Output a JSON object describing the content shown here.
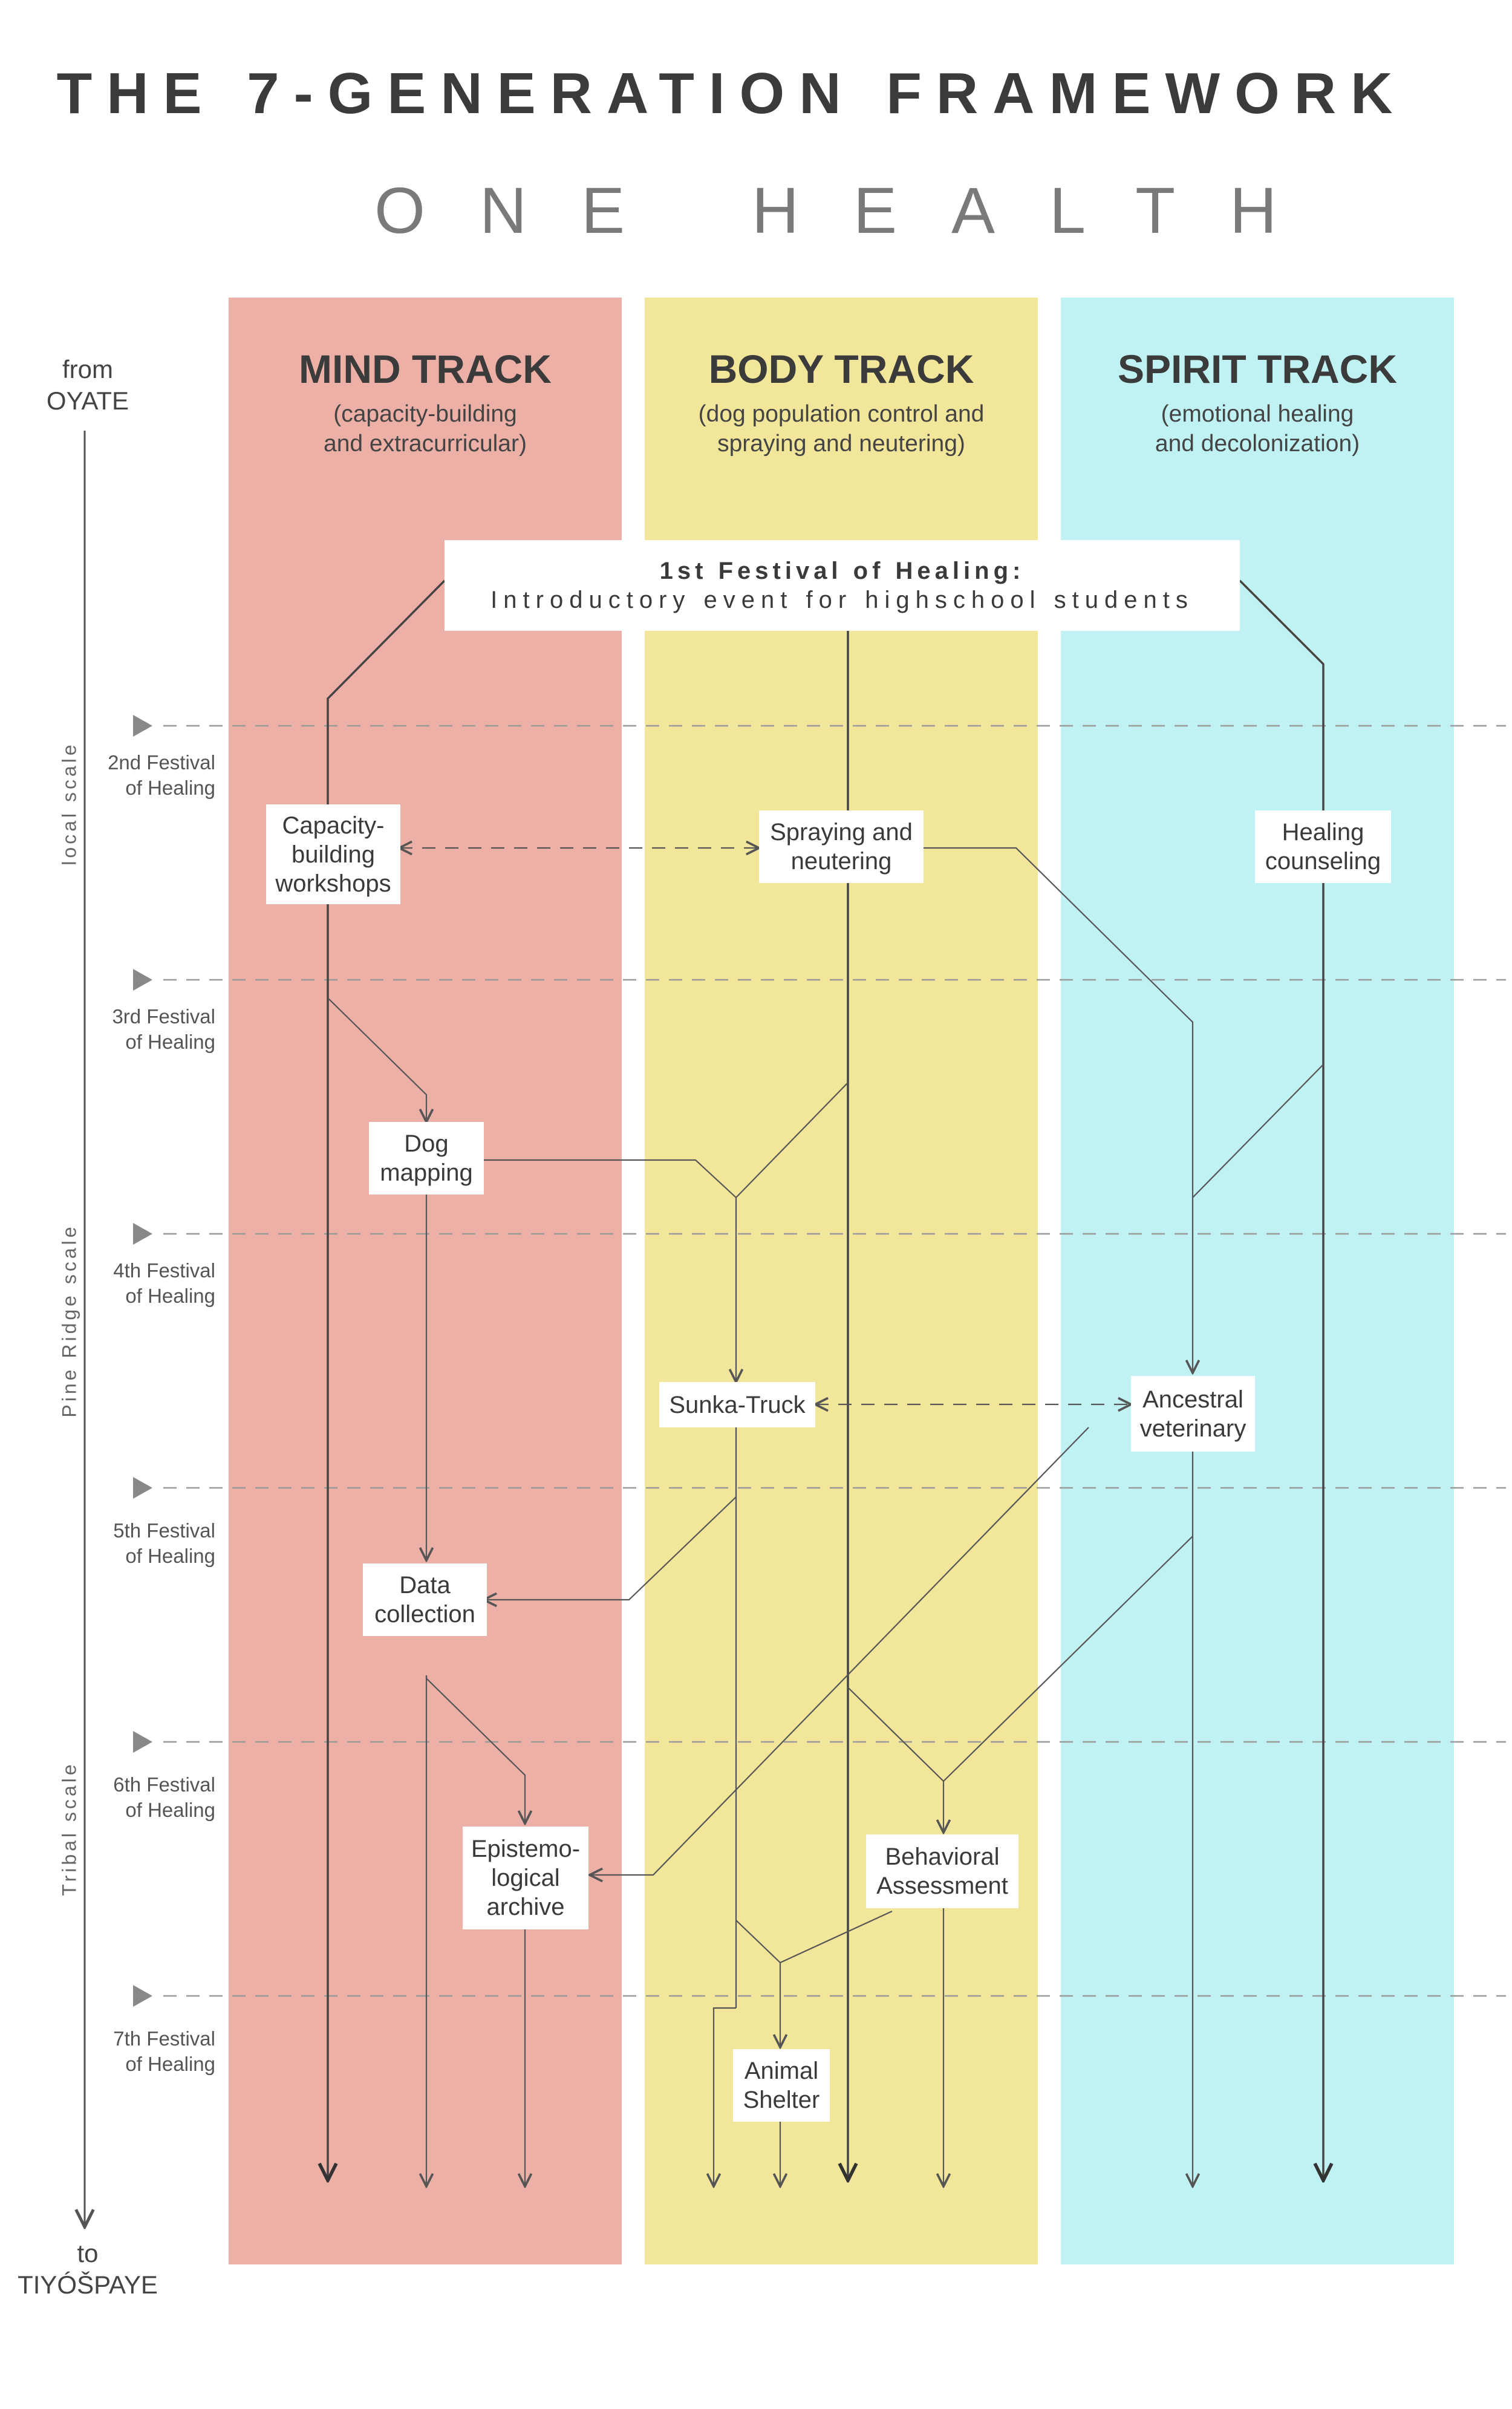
{
  "header": {
    "title": "THE 7-GENERATION FRAMEWORK",
    "subtitle": "ONE HEALTH"
  },
  "side": {
    "from_word": "from",
    "from_place": "OYATE",
    "to_word": "to",
    "to_place": "TIYÓŠPAYE"
  },
  "scales": {
    "local": "local scale",
    "pine_ridge": "Pine Ridge scale",
    "tribal": "Tribal scale"
  },
  "generations": [
    {
      "line1": "2nd Festival",
      "line2": "of Healing"
    },
    {
      "line1": "3rd Festival",
      "line2": "of Healing"
    },
    {
      "line1": "4th Festival",
      "line2": "of Healing"
    },
    {
      "line1": "5th Festival",
      "line2": "of Healing"
    },
    {
      "line1": "6th Festival",
      "line2": "of Healing"
    },
    {
      "line1": "7th Festival",
      "line2": "of Healing"
    }
  ],
  "tracks": {
    "mind": {
      "title": "MIND TRACK",
      "sub1": "(capacity-building",
      "sub2": "and extracurricular)",
      "color": "#edb0a6"
    },
    "body": {
      "title": "BODY TRACK",
      "sub1": "(dog population control and",
      "sub2": "spraying and neutering)",
      "color": "#f2e69b"
    },
    "spirit": {
      "title": "SPIRIT TRACK",
      "sub1": "(emotional healing",
      "sub2": "and decolonization)",
      "color": "#c0f2f4"
    }
  },
  "first_festival": {
    "title": "1st Festival of Healing:",
    "subtitle": "Introductory event for highschool students"
  },
  "nodes": {
    "capacity": {
      "l1": "Capacity-",
      "l2": "building",
      "l3": "workshops"
    },
    "spraying": {
      "l1": "Spraying and",
      "l2": "neutering"
    },
    "healing": {
      "l1": "Healing",
      "l2": "counseling"
    },
    "dogmapping": {
      "l1": "Dog",
      "l2": "mapping"
    },
    "sunka": {
      "l1": "Sunka-Truck"
    },
    "ancestral": {
      "l1": "Ancestral",
      "l2": "veterinary"
    },
    "data": {
      "l1": "Data",
      "l2": "collection"
    },
    "episte": {
      "l1": "Epistemo-",
      "l2": "logical",
      "l3": "archive"
    },
    "behavioral": {
      "l1": "Behavioral",
      "l2": "Assessment"
    },
    "shelter": {
      "l1": "Animal",
      "l2": "Shelter"
    }
  },
  "colors": {
    "line": "#555555",
    "dash": "#999999",
    "marker": "#888888"
  }
}
